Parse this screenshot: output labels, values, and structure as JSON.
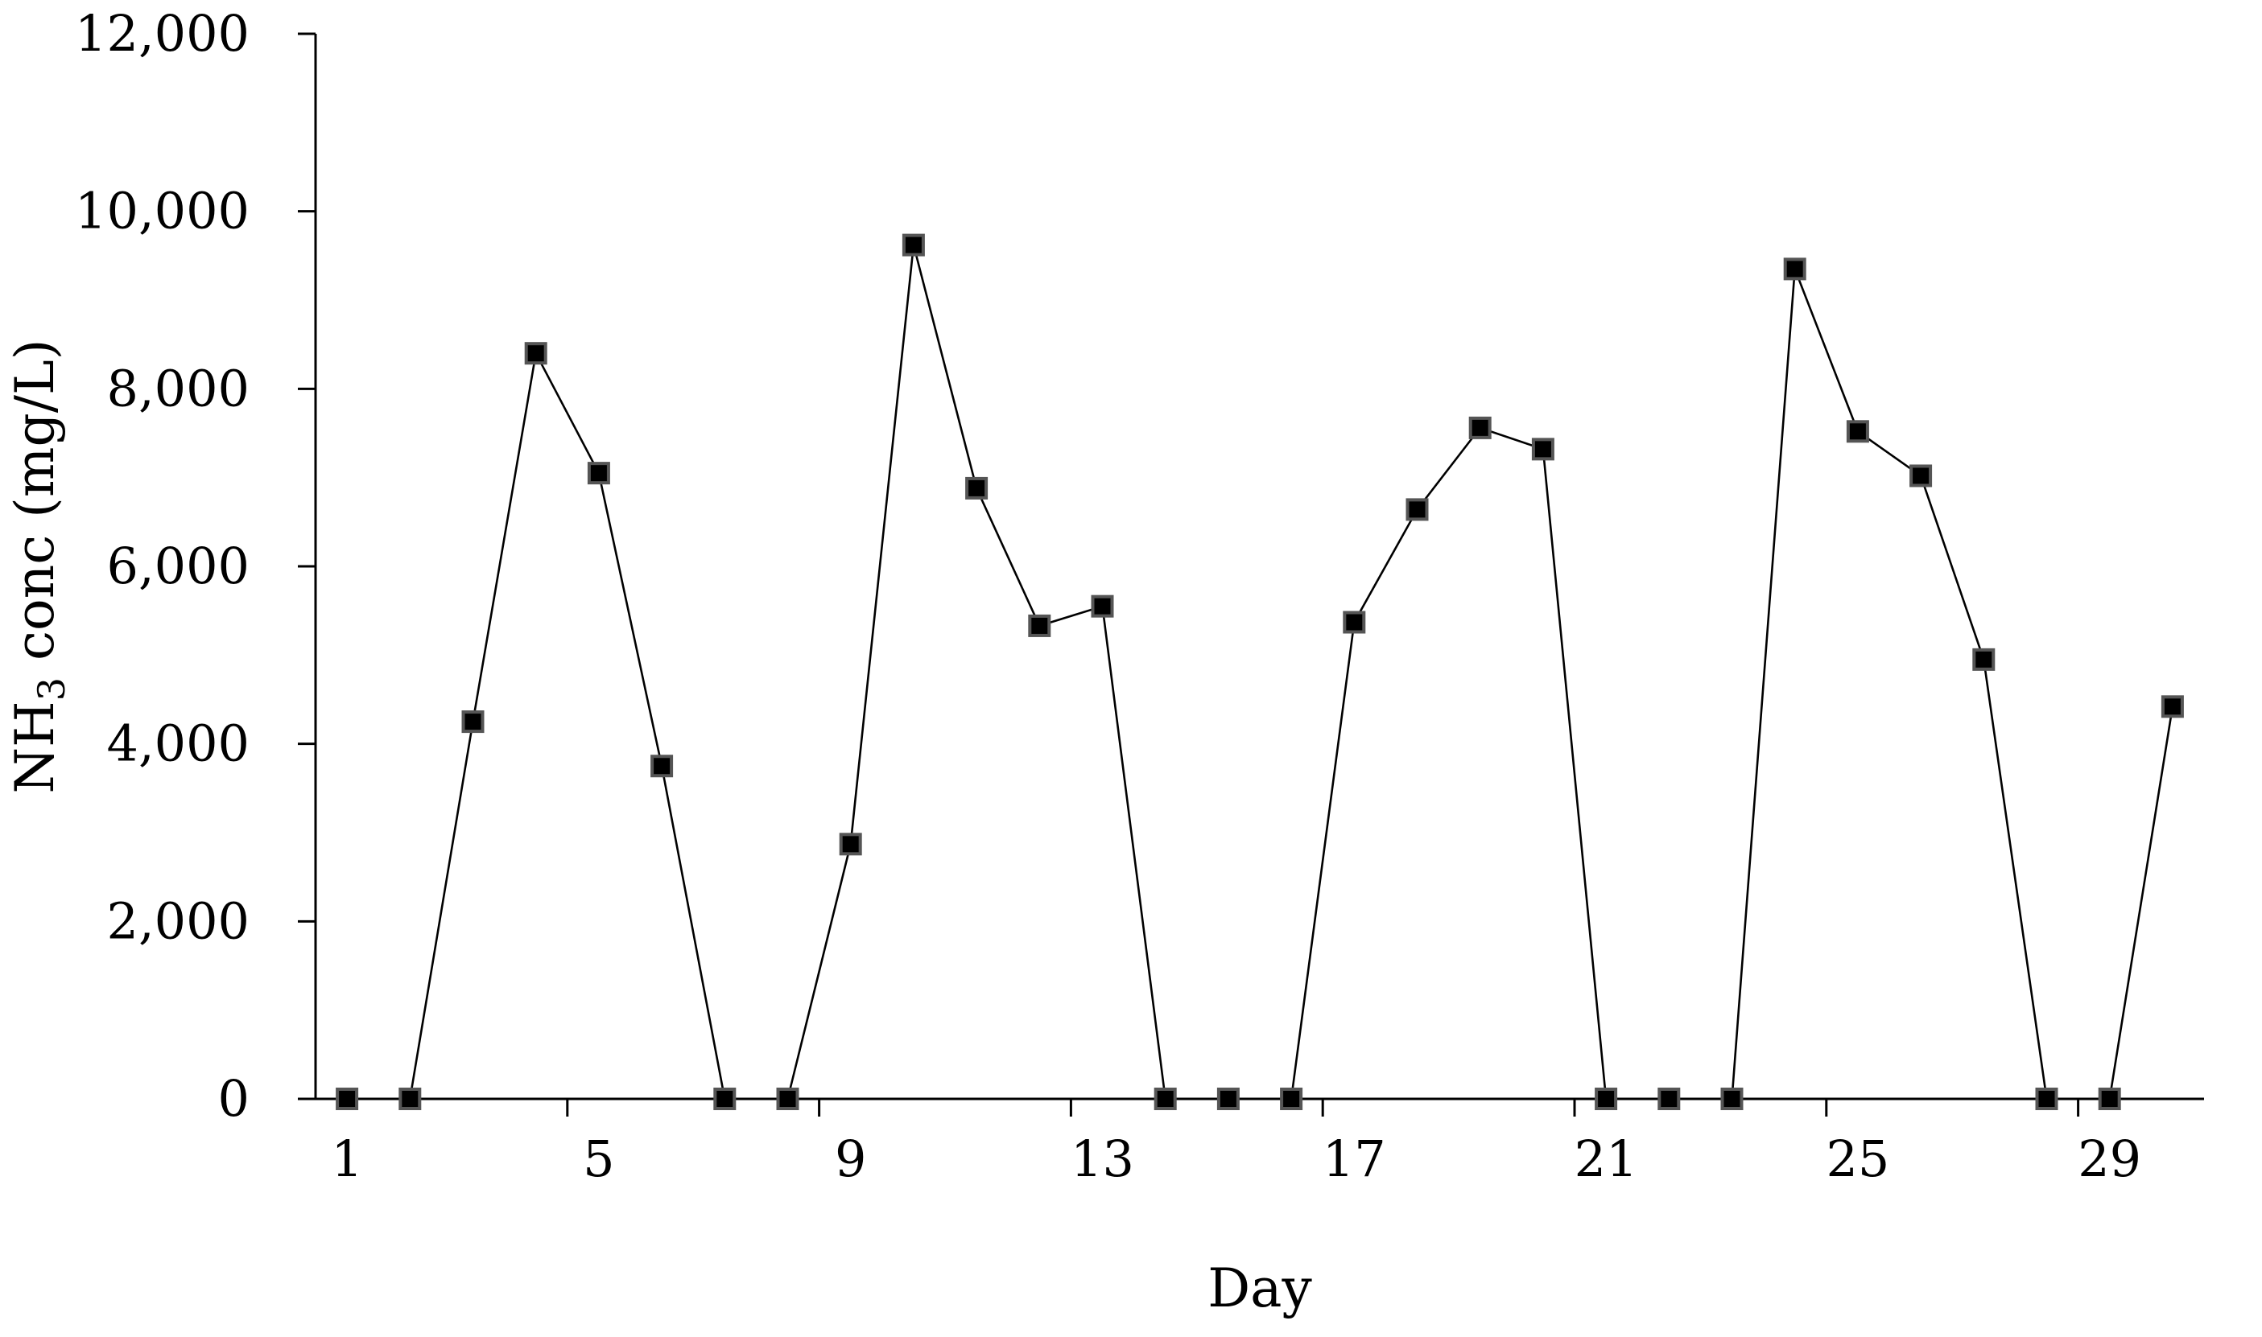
{
  "chart_data": {
    "type": "line",
    "title": "",
    "xlabel": "Day",
    "ylabel_main": "NH",
    "ylabel_sub": "3",
    "ylabel_rest": " conc (mg/L)",
    "xlim": [
      0.5,
      30.5
    ],
    "ylim": [
      0,
      12000
    ],
    "x_ticks": [
      1,
      5,
      9,
      13,
      17,
      21,
      25,
      29
    ],
    "y_ticks": [
      0,
      2000,
      4000,
      6000,
      8000,
      10000,
      12000
    ],
    "y_tick_labels": [
      "0",
      "2,000",
      "4,000",
      "6,000",
      "8,000",
      "10,000",
      "12,000"
    ],
    "x_tick_labels": [
      "1",
      "5",
      "9",
      "13",
      "17",
      "21",
      "25",
      "29"
    ],
    "grid": false,
    "legend": "none",
    "marker": "square",
    "color": "#000000",
    "series": [
      {
        "segments": [
          [
            [
              1,
              0
            ],
            [
              2,
              0
            ],
            [
              3,
              4250
            ],
            [
              4,
              8400
            ],
            [
              5,
              7050
            ],
            [
              6,
              3750
            ],
            [
              7,
              0
            ]
          ],
          [
            [
              8,
              0
            ],
            [
              9,
              2870
            ],
            [
              10,
              9620
            ],
            [
              11,
              6880
            ],
            [
              12,
              5330
            ],
            [
              13,
              5550
            ],
            [
              14,
              0
            ]
          ],
          [
            [
              15,
              0
            ]
          ],
          [
            [
              16,
              0
            ],
            [
              17,
              5370
            ],
            [
              18,
              6640
            ],
            [
              19,
              7560
            ],
            [
              20,
              7320
            ],
            [
              21,
              0
            ]
          ],
          [
            [
              22,
              0
            ]
          ],
          [
            [
              23,
              0
            ],
            [
              24,
              9350
            ],
            [
              25,
              7520
            ],
            [
              26,
              7020
            ],
            [
              27,
              4950
            ],
            [
              28,
              0
            ]
          ],
          [
            [
              29,
              0
            ],
            [
              30,
              4420
            ]
          ]
        ]
      }
    ]
  }
}
